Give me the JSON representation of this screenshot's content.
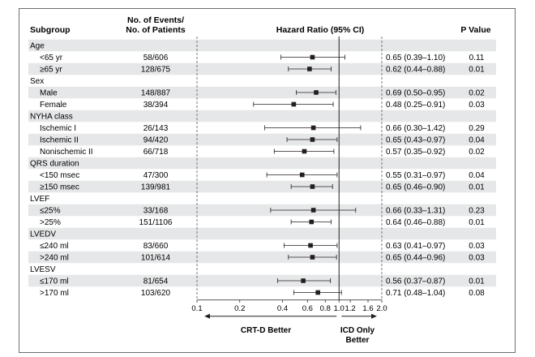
{
  "headers": {
    "subgroup": "Subgroup",
    "events_line1": "No. of Events/",
    "events_line2": "No. of Patients",
    "hr": "Hazard Ratio (95% CI)",
    "p": "P Value"
  },
  "axis_ticks": [
    "0.1",
    "0.2",
    "0.4",
    "0.6",
    "0.8",
    "1.0",
    "1.2",
    "1.6",
    "2.0"
  ],
  "direction_labels": {
    "left": "CRT-D Better",
    "right_line1": "ICD Only",
    "right_line2": "Better"
  },
  "chart_data": {
    "type": "forest",
    "xscale": "log",
    "xlim": [
      0.1,
      2.0
    ],
    "reference": 1.0,
    "rows": [
      {
        "kind": "group",
        "label": "Age"
      },
      {
        "kind": "sub",
        "label": "<65 yr",
        "events": "58/606",
        "hr": 0.65,
        "lo": 0.39,
        "hi": 1.1,
        "ci_text": "0.65 (0.39–1.10)",
        "p": "0.11"
      },
      {
        "kind": "sub",
        "label": "≥65 yr",
        "events": "128/675",
        "hr": 0.62,
        "lo": 0.44,
        "hi": 0.88,
        "ci_text": "0.62 (0.44–0.88)",
        "p": "0.01"
      },
      {
        "kind": "group",
        "label": "Sex"
      },
      {
        "kind": "sub",
        "label": "Male",
        "events": "148/887",
        "hr": 0.69,
        "lo": 0.5,
        "hi": 0.95,
        "ci_text": "0.69 (0.50–0.95)",
        "p": "0.02"
      },
      {
        "kind": "sub",
        "label": "Female",
        "events": "38/394",
        "hr": 0.48,
        "lo": 0.25,
        "hi": 0.91,
        "ci_text": "0.48 (0.25–0.91)",
        "p": "0.03"
      },
      {
        "kind": "group",
        "label": "NYHA class"
      },
      {
        "kind": "sub",
        "label": "Ischemic I",
        "events": "26/143",
        "hr": 0.66,
        "lo": 0.3,
        "hi": 1.42,
        "ci_text": "0.66 (0.30–1.42)",
        "p": "0.29"
      },
      {
        "kind": "sub",
        "label": "Ischemic II",
        "events": "94/420",
        "hr": 0.65,
        "lo": 0.43,
        "hi": 0.97,
        "ci_text": "0.65 (0.43–0.97)",
        "p": "0.04"
      },
      {
        "kind": "sub",
        "label": "Nonischemic II",
        "events": "66/718",
        "hr": 0.57,
        "lo": 0.35,
        "hi": 0.92,
        "ci_text": "0.57 (0.35–0.92)",
        "p": "0.02"
      },
      {
        "kind": "group",
        "label": "QRS duration"
      },
      {
        "kind": "sub",
        "label": "<150 msec",
        "events": "47/300",
        "hr": 0.55,
        "lo": 0.31,
        "hi": 0.97,
        "ci_text": "0.55 (0.31–0.97)",
        "p": "0.04"
      },
      {
        "kind": "sub",
        "label": "≥150 msec",
        "events": "139/981",
        "hr": 0.65,
        "lo": 0.46,
        "hi": 0.9,
        "ci_text": "0.65 (0.46–0.90)",
        "p": "0.01"
      },
      {
        "kind": "group",
        "label": "LVEF"
      },
      {
        "kind": "sub",
        "label": "≤25%",
        "events": "33/168",
        "hr": 0.66,
        "lo": 0.33,
        "hi": 1.31,
        "ci_text": "0.66 (0.33–1.31)",
        "p": "0.23"
      },
      {
        "kind": "sub",
        "label": ">25%",
        "events": "151/1106",
        "hr": 0.64,
        "lo": 0.46,
        "hi": 0.88,
        "ci_text": "0.64 (0.46–0.88)",
        "p": "0.01"
      },
      {
        "kind": "group",
        "label": "LVEDV"
      },
      {
        "kind": "sub",
        "label": "≤240 ml",
        "events": "83/660",
        "hr": 0.63,
        "lo": 0.41,
        "hi": 0.97,
        "ci_text": "0.63 (0.41–0.97)",
        "p": "0.03"
      },
      {
        "kind": "sub",
        "label": ">240 ml",
        "events": "101/614",
        "hr": 0.65,
        "lo": 0.44,
        "hi": 0.96,
        "ci_text": "0.65 (0.44–0.96)",
        "p": "0.03"
      },
      {
        "kind": "group",
        "label": "LVESV"
      },
      {
        "kind": "sub",
        "label": "≤170 ml",
        "events": "81/654",
        "hr": 0.56,
        "lo": 0.37,
        "hi": 0.87,
        "ci_text": "0.56 (0.37–0.87)",
        "p": "0.01"
      },
      {
        "kind": "sub",
        "label": ">170 ml",
        "events": "103/620",
        "hr": 0.71,
        "lo": 0.48,
        "hi": 1.04,
        "ci_text": "0.71 (0.48–1.04)",
        "p": "0.08"
      }
    ]
  },
  "colors": {
    "band": "#e6e7e8",
    "ink": "#231f20",
    "frame": "#6d6e71",
    "dash": "#58595b"
  }
}
